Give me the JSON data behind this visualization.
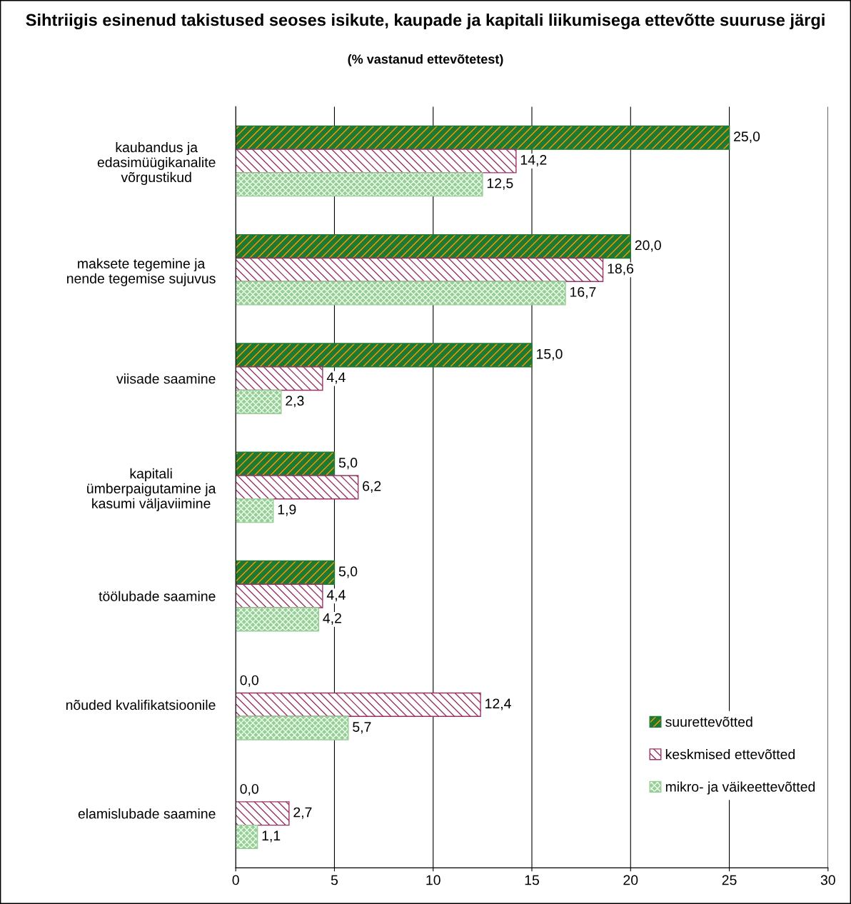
{
  "chart_data": {
    "type": "bar",
    "orientation": "horizontal",
    "title": "Sihtriigis esinenud takistused seoses isikute, kaupade ja kapitali liikumisega ettevõtte suuruse järgi",
    "subtitle": "(% vastanud ettevõtetest)",
    "categories": [
      "kaubandus ja\nedasimüügikanalite\nvõrgustikud",
      "maksete tegemine ja\nnende tegemise sujuvus",
      "viisade saamine",
      "kapitali\nümberpaigutamine ja\nkasumi väljaviimine",
      "töölubade saamine",
      "nõuded kvalifikatsioonile",
      "elamislubade saamine"
    ],
    "series": [
      {
        "name": "suurettevõtted",
        "color": "#1e7a32",
        "values": [
          25.0,
          20.0,
          15.0,
          5.0,
          5.0,
          0.0,
          0.0
        ],
        "value_labels": [
          "25,0",
          "20,0",
          "15,0",
          "5,0",
          "5,0",
          "0,0",
          "0,0"
        ]
      },
      {
        "name": "keskmised ettevõtted",
        "color": "#993366",
        "values": [
          14.2,
          18.6,
          4.4,
          6.2,
          4.4,
          12.4,
          2.7
        ],
        "value_labels": [
          "14,2",
          "18,6",
          "4,4",
          "6,2",
          "4,4",
          "12,4",
          "2,7"
        ]
      },
      {
        "name": "mikro- ja väikeettevõtted",
        "color": "#99cc99",
        "values": [
          12.5,
          16.7,
          2.3,
          1.9,
          4.2,
          5.7,
          1.1
        ],
        "value_labels": [
          "12,5",
          "16,7",
          "2,3",
          "1,9",
          "4,2",
          "5,7",
          "1,1"
        ]
      }
    ],
    "xlim": [
      0,
      30
    ],
    "xticks": [
      0,
      5,
      10,
      15,
      20,
      25,
      30
    ],
    "grid": "x",
    "legend": "bottom right"
  }
}
